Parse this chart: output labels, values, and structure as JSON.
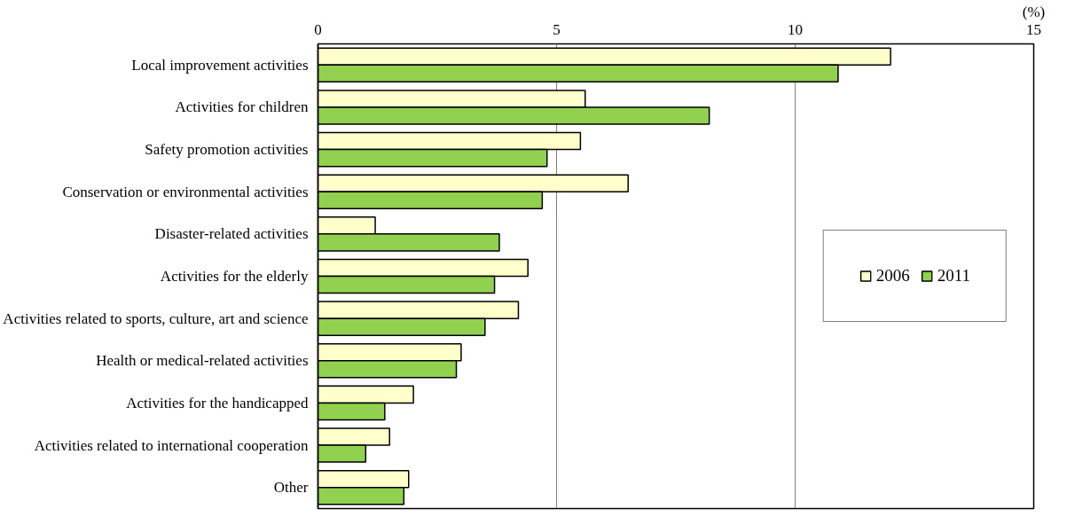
{
  "chart_data": {
    "type": "bar",
    "orientation": "horizontal",
    "xlabel": "(%)",
    "categories": [
      "Local improvement activities",
      "Activities for children",
      "Safety promotion activities",
      "Conservation or environmental activities",
      "Disaster-related activities",
      "Activities for the elderly",
      "Activities related to sports, culture, art and science",
      "Health or medical-related activities",
      "Activities for the handicapped",
      "Activities related to international cooperation",
      "Other"
    ],
    "series": [
      {
        "name": "2006",
        "color": "#ffffcc",
        "values": [
          12.0,
          5.6,
          5.5,
          6.5,
          1.2,
          4.4,
          4.2,
          3.0,
          2.0,
          1.5,
          1.9
        ]
      },
      {
        "name": "2011",
        "color": "#92d050",
        "values": [
          10.9,
          8.2,
          4.8,
          4.7,
          3.8,
          3.7,
          3.5,
          2.9,
          1.4,
          1.0,
          1.8
        ]
      }
    ],
    "xlim": [
      0,
      15
    ],
    "xticks": [
      0,
      5,
      10,
      15
    ],
    "grid": "x",
    "legend": "right"
  }
}
